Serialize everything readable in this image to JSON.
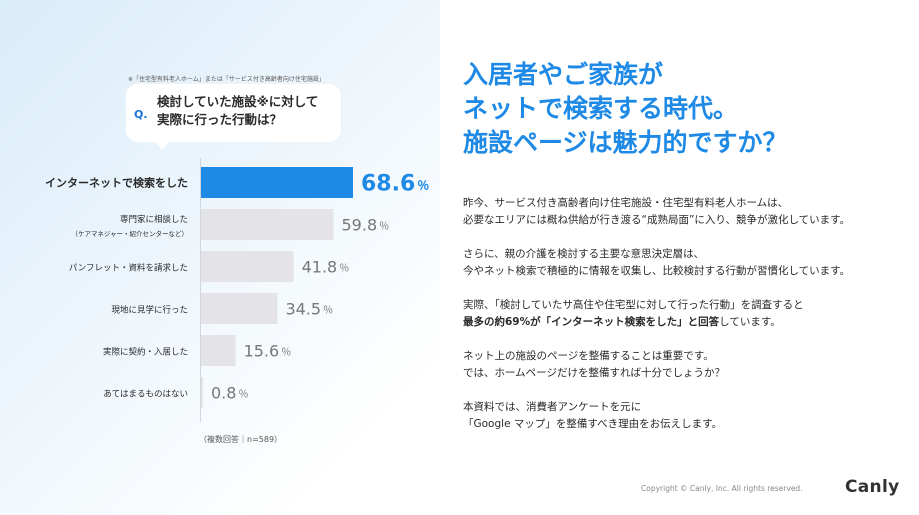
{
  "note": "※「住宅型有料老人ホーム」または「サービス付き高齢者向け住宅施設」",
  "question": {
    "mark": "Q.",
    "line1": "検討していた施設※に対して",
    "line2": "実際に行った行動は？"
  },
  "chart_data": {
    "type": "bar",
    "orientation": "horizontal",
    "categories": [
      "インターネットで検索をした",
      "専門家に相談した",
      "パンフレット・資料を請求した",
      "現地に見学に行った",
      "実際に契約・入居した",
      "あてはまるものはない"
    ],
    "category_sublabels": [
      "",
      "（ケアマネジャー・紹介センターなど）",
      "",
      "",
      "",
      ""
    ],
    "values": [
      68.6,
      59.8,
      41.8,
      34.5,
      15.6,
      0.8
    ],
    "value_labels": [
      "68.6",
      "59.8",
      "41.8",
      "34.5",
      "15.6",
      "0.8"
    ],
    "unit": "％",
    "highlight_index": 0,
    "colors": {
      "highlight": "#1f8ae6",
      "bar": "#e3e3e8",
      "highlight_text": "#1f8ae6",
      "text": "#777777"
    },
    "xlim": [
      0,
      70
    ]
  },
  "sample_note": "（複数回答｜n=589）",
  "headline": {
    "line1": "入居者やご家族が",
    "line2": "ネットで検索する時代。",
    "line3": "施設ページは魅力的ですか？"
  },
  "paragraphs": [
    [
      "昨今、サービス付き高齢者向け住宅施設・住宅型有料老人ホームは、",
      "必要なエリアには概ね供給が行き渡る“成熟局面”に入り、競争が激化しています。"
    ],
    [
      "さらに、親の介護を検討する主要な意思決定層は、",
      "今やネット検索で積極的に情報を収集し、比較検討する行動が習慣化しています。"
    ],
    [
      "実際、「検討していたサ高住や住宅型に対して行った行動」を調査すると"
    ],
    [
      "ネット上の施設のページを整備することは重要です。",
      "では、ホームページだけを整備すれば十分でしょうか？"
    ],
    [
      "本資料では、消費者アンケートを元に",
      "「Google マップ」を整備すべき理由をお伝えします。"
    ]
  ],
  "paragraph3_bold": "最多の約69%が「インターネット検索をした」と回答",
  "paragraph3_tail": "しています。",
  "copyright": "Copyright © Canly, Inc. All rights reserved.",
  "logo": "Canly"
}
